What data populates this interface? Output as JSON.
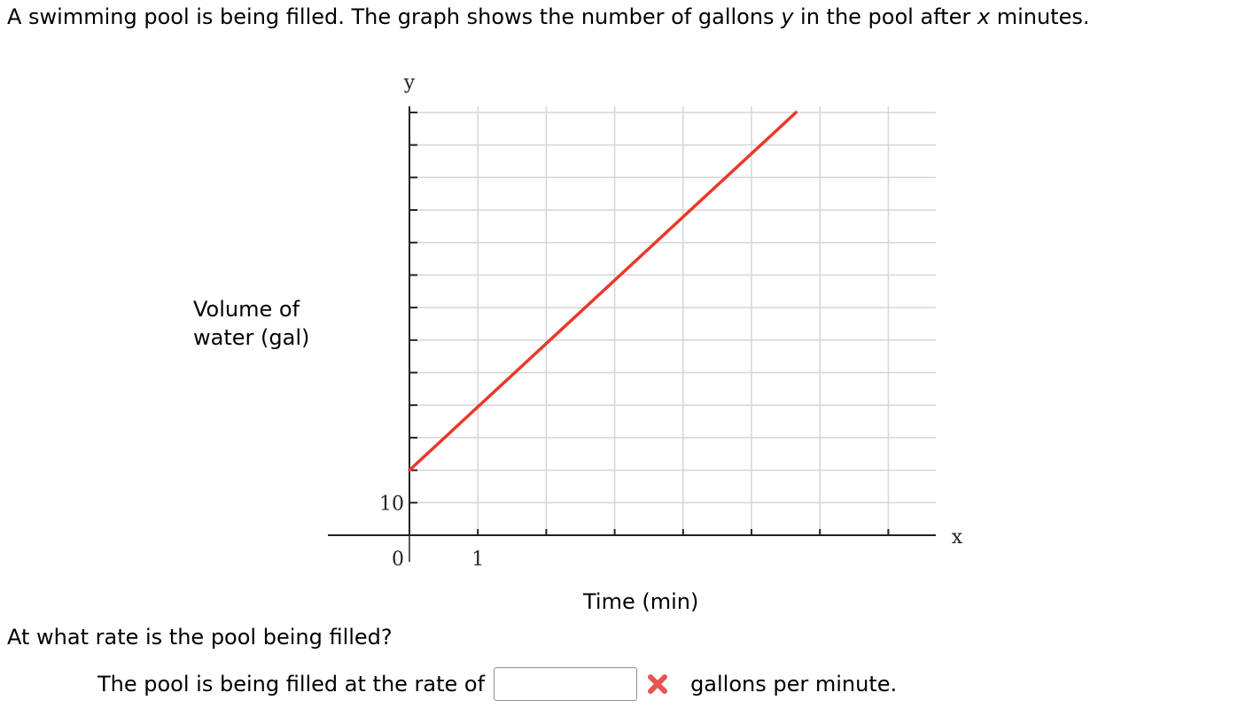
{
  "question": {
    "part1": "A swimming pool is being filled. The graph shows the number of gallons ",
    "var_y": "y",
    "part2": " in the pool after ",
    "var_x": "x",
    "part3": " minutes."
  },
  "chart_data": {
    "type": "line",
    "x_axis_letter": "x",
    "y_axis_letter": "y",
    "xlabel": "Time (min)",
    "ylabel_line1": "Volume of",
    "ylabel_line2": "water (gal)",
    "x_tick_labels": [
      {
        "x": 0,
        "label": "0"
      },
      {
        "x": 1,
        "label": "1"
      }
    ],
    "y_tick_labels": [
      {
        "y": 10,
        "label": "10"
      }
    ],
    "xlim": [
      -1.2,
      7.5
    ],
    "ylim": [
      0,
      130
    ],
    "x_grid_step": 1,
    "y_grid_step": 10,
    "grid": true,
    "series": [
      {
        "color": "#e8392b",
        "x": [
          0,
          5.65
        ],
        "y": [
          20,
          130
        ]
      }
    ]
  },
  "prompt": "At what rate is the pool being filled?",
  "answer": {
    "prefix": "The pool is being filled at the rate of",
    "value": "",
    "suffix": "gallons per minute."
  },
  "colors": {
    "grid": "#d6d6d6",
    "axis": "#222222",
    "line": "#e8392b",
    "wrong_icon": "#e8554e"
  }
}
